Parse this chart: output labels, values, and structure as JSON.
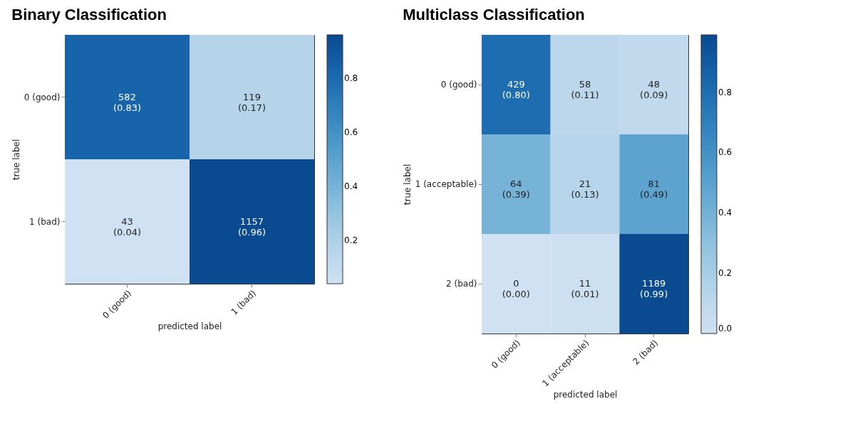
{
  "chart_data": [
    {
      "type": "heatmap",
      "title": "Binary Classification",
      "xlabel": "predicted label",
      "ylabel": "true label",
      "categories": [
        "0 (good)",
        "1 (bad)"
      ],
      "y_categories": [
        "0 (good)",
        "1 (bad)"
      ],
      "cells": [
        [
          0.83,
          0.17
        ],
        [
          0.04,
          0.96
        ]
      ],
      "cell_labels": [
        [
          "582\n(0.83)",
          "119\n(0.17)"
        ],
        [
          "43\n(0.04)",
          "1157\n(0.96)"
        ]
      ],
      "clim": [
        0.04,
        0.96
      ],
      "cticks": [
        0.2,
        0.4,
        0.6,
        0.8
      ]
    },
    {
      "type": "heatmap",
      "title": "Multiclass Classification",
      "xlabel": "predicted label",
      "ylabel": "true label",
      "categories": [
        "0 (good)",
        "1 (acceptable)",
        "2 (bad)"
      ],
      "y_categories": [
        "0 (good)",
        "1 (acceptable)",
        "2 (bad)"
      ],
      "cells": [
        [
          0.8,
          0.11,
          0.09
        ],
        [
          0.39,
          0.13,
          0.49
        ],
        [
          0.0,
          0.01,
          0.99
        ]
      ],
      "cell_labels": [
        [
          "429\n(0.80)",
          "58\n(0.11)",
          "48\n(0.09)"
        ],
        [
          "64\n(0.39)",
          "21\n(0.13)",
          "81\n(0.49)"
        ],
        [
          "0\n(0.00)",
          "11\n(0.01)",
          "1189\n(0.99)"
        ]
      ],
      "clim": [
        0,
        0.99
      ],
      "cticks": [
        {
          "value": 0,
          "label": "0.0"
        },
        0.2,
        0.4,
        0.6,
        0.8
      ]
    }
  ]
}
